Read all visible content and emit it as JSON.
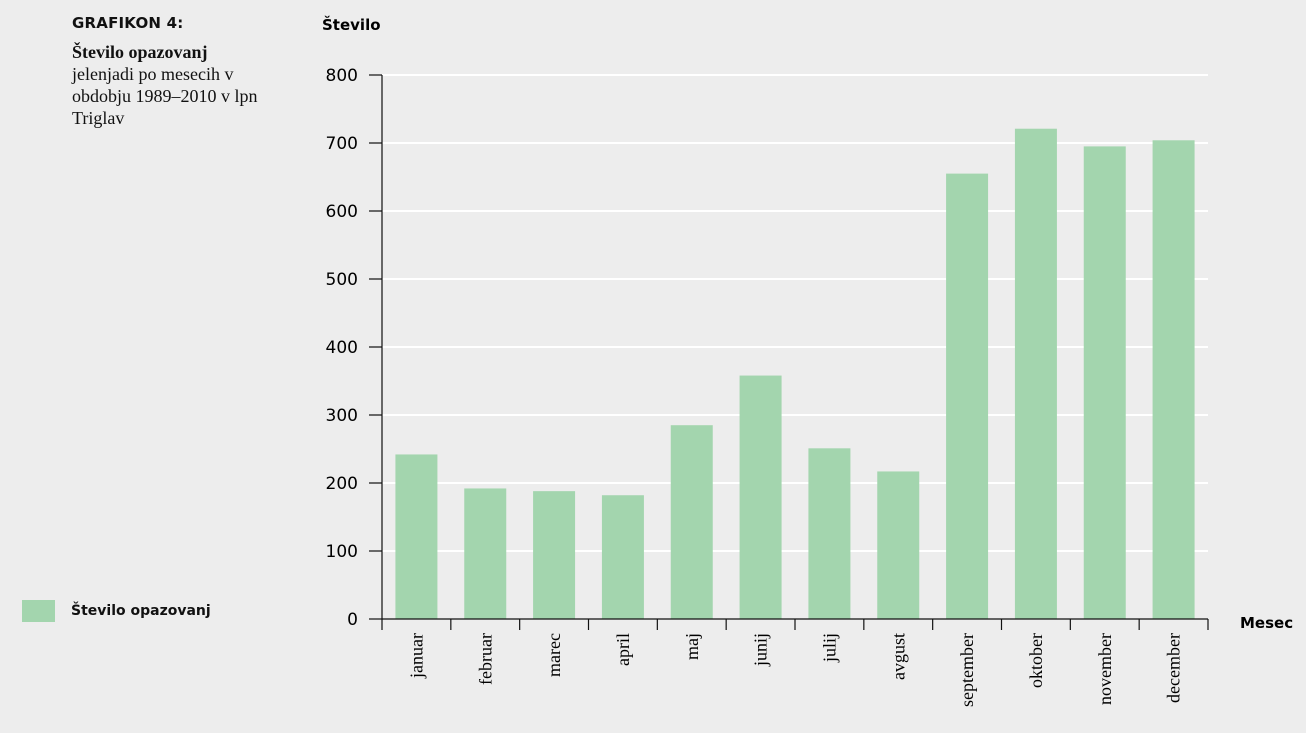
{
  "caption": {
    "label": "GRAFIKON 4:",
    "title_bold": "Število opazovanj",
    "title_rest": "jelenjadi po mesecih v obdobju 1989–2010 v lpn Triglav"
  },
  "legend": {
    "label": "Število opazovanj"
  },
  "colors": {
    "bar": "#a3d5ae",
    "grid": "#ffffff",
    "axis": "#111111",
    "background": "#ededed"
  },
  "chart_data": {
    "type": "bar",
    "xlabel": "Mesec",
    "ylabel": "Število",
    "ylim": [
      0,
      800
    ],
    "yticks": [
      0,
      100,
      200,
      300,
      400,
      500,
      600,
      700,
      800
    ],
    "grid": true,
    "legend_position": "bottom-left",
    "categories": [
      "januar",
      "februar",
      "marec",
      "april",
      "maj",
      "junij",
      "julij",
      "avgust",
      "september",
      "oktober",
      "november",
      "december"
    ],
    "series": [
      {
        "name": "Število opazovanj",
        "values": [
          242,
          192,
          188,
          182,
          285,
          358,
          251,
          217,
          655,
          721,
          695,
          704
        ]
      }
    ]
  }
}
